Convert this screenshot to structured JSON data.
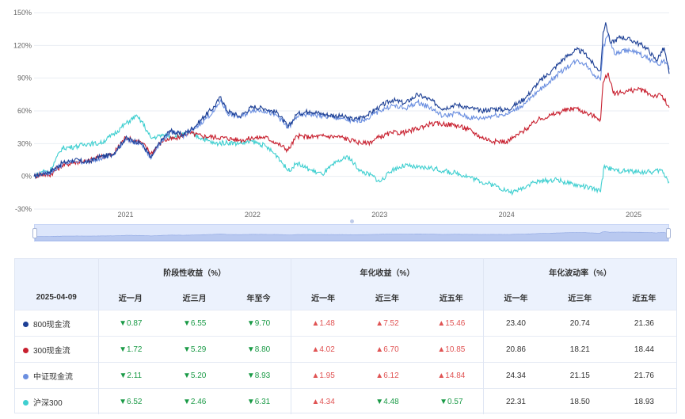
{
  "chart_data": {
    "type": "line",
    "y_axis_labels": [
      "150%",
      "120%",
      "90%",
      "60%",
      "30%",
      "0%",
      "-30%"
    ],
    "y_ticks": [
      150,
      120,
      90,
      60,
      30,
      0,
      -30
    ],
    "ylim": [
      -30,
      150
    ],
    "x_axis_labels": [
      "2021",
      "2022",
      "2023",
      "2024",
      "2025"
    ],
    "x_tick_dates": [
      2021.0,
      2022.0,
      2023.0,
      2024.0,
      2025.0
    ],
    "x_range": [
      2020.28,
      2025.28
    ],
    "grid": true,
    "series": [
      {
        "name": "800现金流",
        "color": "#1c3f95",
        "points": [
          [
            2020.28,
            0
          ],
          [
            2020.35,
            3
          ],
          [
            2020.4,
            4
          ],
          [
            2020.5,
            12
          ],
          [
            2020.6,
            15
          ],
          [
            2020.7,
            13
          ],
          [
            2020.8,
            18
          ],
          [
            2020.9,
            20
          ],
          [
            2021.0,
            35
          ],
          [
            2021.08,
            32
          ],
          [
            2021.13,
            30
          ],
          [
            2021.2,
            17
          ],
          [
            2021.25,
            28
          ],
          [
            2021.35,
            42
          ],
          [
            2021.45,
            38
          ],
          [
            2021.55,
            46
          ],
          [
            2021.62,
            55
          ],
          [
            2021.7,
            64
          ],
          [
            2021.75,
            73
          ],
          [
            2021.8,
            60
          ],
          [
            2021.9,
            55
          ],
          [
            2022.0,
            64
          ],
          [
            2022.1,
            62
          ],
          [
            2022.2,
            58
          ],
          [
            2022.28,
            45
          ],
          [
            2022.35,
            57
          ],
          [
            2022.45,
            60
          ],
          [
            2022.55,
            57
          ],
          [
            2022.7,
            55
          ],
          [
            2022.8,
            52
          ],
          [
            2022.9,
            56
          ],
          [
            2023.0,
            64
          ],
          [
            2023.1,
            70
          ],
          [
            2023.2,
            67
          ],
          [
            2023.3,
            75
          ],
          [
            2023.4,
            70
          ],
          [
            2023.5,
            62
          ],
          [
            2023.6,
            66
          ],
          [
            2023.7,
            63
          ],
          [
            2023.8,
            60
          ],
          [
            2023.9,
            62
          ],
          [
            2024.0,
            61
          ],
          [
            2024.05,
            64
          ],
          [
            2024.15,
            72
          ],
          [
            2024.25,
            86
          ],
          [
            2024.35,
            96
          ],
          [
            2024.45,
            108
          ],
          [
            2024.55,
            116
          ],
          [
            2024.62,
            113
          ],
          [
            2024.7,
            100
          ],
          [
            2024.74,
            97
          ],
          [
            2024.76,
            132
          ],
          [
            2024.78,
            141
          ],
          [
            2024.82,
            122
          ],
          [
            2024.9,
            128
          ],
          [
            2025.0,
            124
          ],
          [
            2025.1,
            118
          ],
          [
            2025.18,
            106
          ],
          [
            2025.24,
            118
          ],
          [
            2025.28,
            94
          ]
        ]
      },
      {
        "name": "300现金流",
        "color": "#c8202f",
        "points": [
          [
            2020.28,
            0
          ],
          [
            2020.35,
            2
          ],
          [
            2020.4,
            1
          ],
          [
            2020.5,
            10
          ],
          [
            2020.6,
            13
          ],
          [
            2020.7,
            14
          ],
          [
            2020.8,
            18
          ],
          [
            2020.9,
            20
          ],
          [
            2021.0,
            36
          ],
          [
            2021.06,
            33
          ],
          [
            2021.13,
            31
          ],
          [
            2021.2,
            21
          ],
          [
            2021.3,
            33
          ],
          [
            2021.4,
            35
          ],
          [
            2021.5,
            40
          ],
          [
            2021.6,
            37
          ],
          [
            2021.7,
            36
          ],
          [
            2021.8,
            35
          ],
          [
            2021.9,
            33
          ],
          [
            2022.0,
            35
          ],
          [
            2022.1,
            36
          ],
          [
            2022.2,
            30
          ],
          [
            2022.28,
            24
          ],
          [
            2022.35,
            37
          ],
          [
            2022.45,
            36
          ],
          [
            2022.55,
            37
          ],
          [
            2022.7,
            36
          ],
          [
            2022.8,
            32
          ],
          [
            2022.9,
            30
          ],
          [
            2023.0,
            36
          ],
          [
            2023.1,
            40
          ],
          [
            2023.2,
            40
          ],
          [
            2023.3,
            44
          ],
          [
            2023.4,
            48
          ],
          [
            2023.5,
            48
          ],
          [
            2023.6,
            47
          ],
          [
            2023.7,
            43
          ],
          [
            2023.8,
            36
          ],
          [
            2023.9,
            32
          ],
          [
            2024.0,
            32
          ],
          [
            2024.05,
            35
          ],
          [
            2024.15,
            43
          ],
          [
            2024.25,
            52
          ],
          [
            2024.35,
            56
          ],
          [
            2024.45,
            60
          ],
          [
            2024.55,
            63
          ],
          [
            2024.62,
            58
          ],
          [
            2024.7,
            55
          ],
          [
            2024.74,
            52
          ],
          [
            2024.76,
            86
          ],
          [
            2024.8,
            95
          ],
          [
            2024.84,
            76
          ],
          [
            2024.95,
            78
          ],
          [
            2025.05,
            80
          ],
          [
            2025.15,
            74
          ],
          [
            2025.22,
            74
          ],
          [
            2025.28,
            63
          ]
        ]
      },
      {
        "name": "中证现金流",
        "color": "#6b8fe0",
        "points": [
          [
            2020.28,
            0
          ],
          [
            2020.35,
            3
          ],
          [
            2020.4,
            3
          ],
          [
            2020.5,
            11
          ],
          [
            2020.6,
            14
          ],
          [
            2020.7,
            13
          ],
          [
            2020.8,
            17
          ],
          [
            2020.9,
            19
          ],
          [
            2021.0,
            34
          ],
          [
            2021.08,
            31
          ],
          [
            2021.13,
            29
          ],
          [
            2021.2,
            16
          ],
          [
            2021.25,
            27
          ],
          [
            2021.35,
            41
          ],
          [
            2021.45,
            37
          ],
          [
            2021.55,
            44
          ],
          [
            2021.62,
            52
          ],
          [
            2021.7,
            60
          ],
          [
            2021.75,
            70
          ],
          [
            2021.8,
            58
          ],
          [
            2021.9,
            54
          ],
          [
            2022.0,
            61
          ],
          [
            2022.1,
            60
          ],
          [
            2022.2,
            55
          ],
          [
            2022.28,
            44
          ],
          [
            2022.35,
            55
          ],
          [
            2022.45,
            57
          ],
          [
            2022.55,
            55
          ],
          [
            2022.7,
            53
          ],
          [
            2022.8,
            50
          ],
          [
            2022.9,
            53
          ],
          [
            2023.0,
            60
          ],
          [
            2023.1,
            65
          ],
          [
            2023.2,
            62
          ],
          [
            2023.3,
            68
          ],
          [
            2023.4,
            63
          ],
          [
            2023.5,
            55
          ],
          [
            2023.6,
            58
          ],
          [
            2023.7,
            54
          ],
          [
            2023.8,
            53
          ],
          [
            2023.9,
            56
          ],
          [
            2024.0,
            57
          ],
          [
            2024.05,
            60
          ],
          [
            2024.15,
            67
          ],
          [
            2024.25,
            78
          ],
          [
            2024.35,
            88
          ],
          [
            2024.45,
            98
          ],
          [
            2024.55,
            106
          ],
          [
            2024.62,
            103
          ],
          [
            2024.7,
            92
          ],
          [
            2024.74,
            88
          ],
          [
            2024.76,
            118
          ],
          [
            2024.8,
            130
          ],
          [
            2024.85,
            112
          ],
          [
            2024.95,
            116
          ],
          [
            2025.05,
            112
          ],
          [
            2025.15,
            106
          ],
          [
            2025.2,
            102
          ],
          [
            2025.24,
            107
          ],
          [
            2025.28,
            98
          ]
        ]
      },
      {
        "name": "沪深300",
        "color": "#3fcfd0",
        "points": [
          [
            2020.28,
            0
          ],
          [
            2020.35,
            5
          ],
          [
            2020.4,
            4
          ],
          [
            2020.5,
            26
          ],
          [
            2020.6,
            27
          ],
          [
            2020.7,
            30
          ],
          [
            2020.8,
            30
          ],
          [
            2020.9,
            38
          ],
          [
            2021.0,
            48
          ],
          [
            2021.08,
            55
          ],
          [
            2021.13,
            50
          ],
          [
            2021.2,
            35
          ],
          [
            2021.3,
            38
          ],
          [
            2021.4,
            36
          ],
          [
            2021.5,
            40
          ],
          [
            2021.6,
            35
          ],
          [
            2021.7,
            30
          ],
          [
            2021.8,
            31
          ],
          [
            2021.9,
            30
          ],
          [
            2022.0,
            32
          ],
          [
            2022.1,
            28
          ],
          [
            2022.2,
            18
          ],
          [
            2022.28,
            5
          ],
          [
            2022.35,
            12
          ],
          [
            2022.45,
            6
          ],
          [
            2022.55,
            2
          ],
          [
            2022.65,
            12
          ],
          [
            2022.75,
            18
          ],
          [
            2022.85,
            5
          ],
          [
            2022.95,
            0
          ],
          [
            2023.0,
            -5
          ],
          [
            2023.05,
            0
          ],
          [
            2023.1,
            6
          ],
          [
            2023.2,
            10
          ],
          [
            2023.3,
            8
          ],
          [
            2023.4,
            8
          ],
          [
            2023.5,
            5
          ],
          [
            2023.6,
            3
          ],
          [
            2023.7,
            0
          ],
          [
            2023.8,
            -5
          ],
          [
            2023.9,
            -8
          ],
          [
            2024.0,
            -13
          ],
          [
            2024.05,
            -15
          ],
          [
            2024.1,
            -12
          ],
          [
            2024.2,
            -6
          ],
          [
            2024.3,
            -4
          ],
          [
            2024.4,
            -3
          ],
          [
            2024.5,
            -7
          ],
          [
            2024.6,
            -9
          ],
          [
            2024.7,
            -12
          ],
          [
            2024.74,
            -14
          ],
          [
            2024.77,
            10
          ],
          [
            2024.8,
            8
          ],
          [
            2024.85,
            5
          ],
          [
            2024.95,
            5
          ],
          [
            2025.05,
            4
          ],
          [
            2025.15,
            4
          ],
          [
            2025.22,
            6
          ],
          [
            2025.28,
            -5
          ]
        ]
      }
    ]
  },
  "table": {
    "group_headers": [
      "阶段性收益（%）",
      "年化收益（%）",
      "年化波动率（%）"
    ],
    "date_label": "2025-04-09",
    "columns": [
      "近一月",
      "近三月",
      "年至今",
      "近一年",
      "近三年",
      "近五年",
      "近一年",
      "近三年",
      "近五年"
    ],
    "rows": [
      {
        "name": "800现金流",
        "color": "#1c3f95",
        "cells": [
          {
            "v": "▼0.87",
            "dir": "down"
          },
          {
            "v": "▼6.55",
            "dir": "down"
          },
          {
            "v": "▼9.70",
            "dir": "down"
          },
          {
            "v": "▲1.48",
            "dir": "up"
          },
          {
            "v": "▲7.52",
            "dir": "up"
          },
          {
            "v": "▲15.46",
            "dir": "up"
          },
          {
            "v": "23.40",
            "dir": ""
          },
          {
            "v": "20.74",
            "dir": ""
          },
          {
            "v": "21.36",
            "dir": ""
          }
        ]
      },
      {
        "name": "300现金流",
        "color": "#c8202f",
        "cells": [
          {
            "v": "▼1.72",
            "dir": "down"
          },
          {
            "v": "▼5.29",
            "dir": "down"
          },
          {
            "v": "▼8.80",
            "dir": "down"
          },
          {
            "v": "▲4.02",
            "dir": "up"
          },
          {
            "v": "▲6.70",
            "dir": "up"
          },
          {
            "v": "▲10.85",
            "dir": "up"
          },
          {
            "v": "20.86",
            "dir": ""
          },
          {
            "v": "18.21",
            "dir": ""
          },
          {
            "v": "18.44",
            "dir": ""
          }
        ]
      },
      {
        "name": "中证现金流",
        "color": "#6b8fe0",
        "cells": [
          {
            "v": "▼2.11",
            "dir": "down"
          },
          {
            "v": "▼5.20",
            "dir": "down"
          },
          {
            "v": "▼8.93",
            "dir": "down"
          },
          {
            "v": "▲1.95",
            "dir": "up"
          },
          {
            "v": "▲6.12",
            "dir": "up"
          },
          {
            "v": "▲14.84",
            "dir": "up"
          },
          {
            "v": "24.34",
            "dir": ""
          },
          {
            "v": "21.15",
            "dir": ""
          },
          {
            "v": "21.76",
            "dir": ""
          }
        ]
      },
      {
        "name": "沪深300",
        "color": "#3fcfd0",
        "cells": [
          {
            "v": "▼6.52",
            "dir": "down"
          },
          {
            "v": "▼2.46",
            "dir": "down"
          },
          {
            "v": "▼6.31",
            "dir": "down"
          },
          {
            "v": "▲4.34",
            "dir": "up"
          },
          {
            "v": "▼4.48",
            "dir": "down"
          },
          {
            "v": "▼0.57",
            "dir": "down"
          },
          {
            "v": "22.31",
            "dir": ""
          },
          {
            "v": "18.50",
            "dir": ""
          },
          {
            "v": "18.93",
            "dir": ""
          }
        ]
      }
    ]
  }
}
